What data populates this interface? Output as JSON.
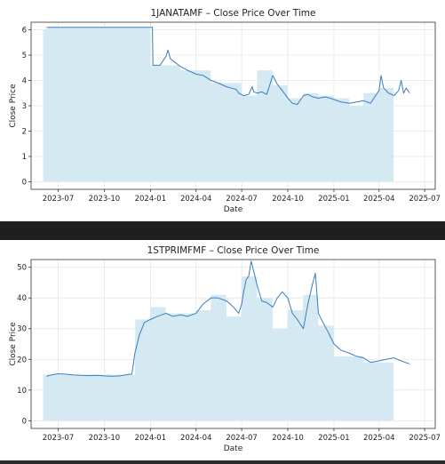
{
  "charts": [
    {
      "type": "area",
      "title": "1JANATAMF – Close Price Over Time",
      "xlabel": "Date",
      "ylabel": "Close Price",
      "ylim": [
        -0.3,
        6.3
      ],
      "yticks": [
        0,
        1,
        2,
        3,
        4,
        5,
        6
      ],
      "xlim": [
        "2023-05-08",
        "2025-07-22"
      ],
      "xticks": [
        "2023-07",
        "2023-10",
        "2024-01",
        "2024-04",
        "2024-07",
        "2024-10",
        "2025-01",
        "2025-04",
        "2025-07"
      ],
      "grid": true,
      "colors": {
        "line": "#3b7dbf",
        "fill": "#d4e9f2"
      },
      "series": [
        {
          "kind": "line",
          "x": [
            "2023-06-08",
            "2023-06-20",
            "2023-08-01",
            "2023-10-01",
            "2023-12-01",
            "2024-01-05",
            "2024-01-06",
            "2024-01-20",
            "2024-02-01",
            "2024-02-05",
            "2024-02-10",
            "2024-02-20",
            "2024-03-01",
            "2024-03-15",
            "2024-04-01",
            "2024-04-15",
            "2024-05-01",
            "2024-05-15",
            "2024-06-01",
            "2024-06-10",
            "2024-06-20",
            "2024-06-25",
            "2024-07-05",
            "2024-07-15",
            "2024-07-22",
            "2024-07-25",
            "2024-08-01",
            "2024-08-10",
            "2024-08-20",
            "2024-09-01",
            "2024-09-10",
            "2024-09-20",
            "2024-10-01",
            "2024-10-10",
            "2024-10-20",
            "2024-11-01",
            "2024-11-10",
            "2024-11-20",
            "2024-12-01",
            "2024-12-15",
            "2025-01-01",
            "2025-01-15",
            "2025-02-01",
            "2025-02-15",
            "2025-03-01",
            "2025-03-15",
            "2025-03-25",
            "2025-04-01",
            "2025-04-05",
            "2025-04-10",
            "2025-04-20",
            "2025-05-01",
            "2025-05-10",
            "2025-05-15",
            "2025-05-20",
            "2025-05-25",
            "2025-06-01"
          ],
          "y": [
            6.1,
            6.1,
            6.1,
            6.1,
            6.1,
            6.1,
            4.6,
            4.6,
            4.95,
            5.2,
            4.85,
            4.7,
            4.55,
            4.4,
            4.25,
            4.2,
            4.0,
            3.9,
            3.75,
            3.7,
            3.65,
            3.5,
            3.4,
            3.45,
            3.75,
            3.55,
            3.5,
            3.55,
            3.45,
            4.2,
            3.85,
            3.6,
            3.3,
            3.1,
            3.05,
            3.4,
            3.45,
            3.35,
            3.3,
            3.35,
            3.25,
            3.15,
            3.1,
            3.15,
            3.2,
            3.1,
            3.4,
            3.6,
            4.2,
            3.7,
            3.5,
            3.4,
            3.6,
            4.0,
            3.5,
            3.7,
            3.5
          ]
        },
        {
          "kind": "area",
          "x": [
            "2023-06-01",
            "2023-06-15",
            "2023-12-31",
            "2024-01-01",
            "2024-02-28",
            "2024-03-01",
            "2024-04-30",
            "2024-05-01",
            "2024-06-30",
            "2024-07-01",
            "2024-07-31",
            "2024-08-01",
            "2024-08-31",
            "2024-09-01",
            "2024-09-30",
            "2024-10-01",
            "2024-10-31",
            "2024-11-01",
            "2024-11-30",
            "2024-12-01",
            "2024-12-31",
            "2025-01-01",
            "2025-01-31",
            "2025-02-01",
            "2025-02-28",
            "2025-03-01",
            "2025-03-31",
            "2025-04-01",
            "2025-04-30"
          ],
          "y": [
            6.0,
            6.1,
            6.1,
            4.6,
            4.6,
            4.4,
            4.4,
            3.9,
            3.9,
            3.4,
            3.4,
            4.4,
            4.4,
            3.8,
            3.8,
            3.3,
            3.3,
            3.5,
            3.5,
            3.4,
            3.4,
            3.3,
            3.3,
            3.0,
            3.0,
            3.5,
            3.5,
            3.7,
            3.7
          ]
        }
      ]
    },
    {
      "type": "area",
      "title": "1STPRIMFMF – Close Price Over Time",
      "xlabel": "Date",
      "ylabel": "Close Price",
      "ylim": [
        -2.5,
        52.5
      ],
      "yticks": [
        0,
        10,
        20,
        30,
        40,
        50
      ],
      "xlim": [
        "2023-05-08",
        "2025-07-22"
      ],
      "xticks": [
        "2023-07",
        "2023-10",
        "2024-01",
        "2024-04",
        "2024-07",
        "2024-10",
        "2025-01",
        "2025-04",
        "2025-07"
      ],
      "grid": true,
      "colors": {
        "line": "#3b7dbf",
        "fill": "#d4e9f2"
      },
      "series": [
        {
          "kind": "line",
          "x": [
            "2023-06-08",
            "2023-06-20",
            "2023-07-01",
            "2023-07-15",
            "2023-08-01",
            "2023-08-15",
            "2023-09-01",
            "2023-09-15",
            "2023-10-01",
            "2023-10-15",
            "2023-11-01",
            "2023-11-15",
            "2023-11-25",
            "2023-12-01",
            "2023-12-10",
            "2023-12-20",
            "2024-01-01",
            "2024-01-15",
            "2024-02-01",
            "2024-02-15",
            "2024-03-01",
            "2024-03-15",
            "2024-04-01",
            "2024-04-15",
            "2024-05-01",
            "2024-05-15",
            "2024-06-01",
            "2024-06-15",
            "2024-06-25",
            "2024-07-01",
            "2024-07-05",
            "2024-07-10",
            "2024-07-15",
            "2024-07-20",
            "2024-08-01",
            "2024-08-10",
            "2024-08-20",
            "2024-09-01",
            "2024-09-10",
            "2024-09-20",
            "2024-10-01",
            "2024-10-10",
            "2024-10-20",
            "2024-11-01",
            "2024-11-10",
            "2024-11-20",
            "2024-11-25",
            "2024-12-01",
            "2024-12-10",
            "2024-12-20",
            "2025-01-01",
            "2025-01-15",
            "2025-02-01",
            "2025-02-15",
            "2025-03-01",
            "2025-03-15",
            "2025-04-01",
            "2025-04-15",
            "2025-05-01",
            "2025-05-15",
            "2025-06-01"
          ],
          "y": [
            14.5,
            15,
            15.3,
            15.2,
            14.9,
            14.8,
            14.7,
            14.8,
            14.6,
            14.5,
            14.6,
            15,
            15.2,
            22,
            28,
            32,
            33,
            34,
            35,
            34,
            34.5,
            34,
            35,
            38,
            40,
            40,
            39,
            37,
            35,
            38,
            42,
            46,
            47,
            52,
            44,
            39,
            38.5,
            37,
            40,
            42,
            40,
            35,
            33,
            30,
            38,
            45,
            48,
            35,
            32,
            29,
            25,
            23,
            22,
            21,
            20.5,
            19,
            19.5,
            20,
            20.5,
            19.5,
            18.5
          ]
        },
        {
          "kind": "area",
          "x": [
            "2023-06-01",
            "2023-12-01",
            "2023-12-02",
            "2023-12-31",
            "2024-01-01",
            "2024-01-31",
            "2024-02-01",
            "2024-03-31",
            "2024-04-01",
            "2024-04-30",
            "2024-05-01",
            "2024-05-31",
            "2024-06-01",
            "2024-06-30",
            "2024-07-01",
            "2024-07-31",
            "2024-08-01",
            "2024-08-31",
            "2024-09-01",
            "2024-09-30",
            "2024-10-01",
            "2024-10-31",
            "2024-11-01",
            "2024-11-30",
            "2024-12-01",
            "2024-12-31",
            "2025-01-01",
            "2025-02-28",
            "2025-03-01",
            "2025-04-30"
          ],
          "y": [
            15,
            15,
            33,
            33,
            37,
            37,
            35,
            35,
            36,
            36,
            41,
            41,
            34,
            34,
            47,
            47,
            40,
            40,
            30,
            30,
            36,
            36,
            41,
            41,
            31,
            31,
            21,
            21,
            19,
            19
          ]
        }
      ]
    }
  ]
}
